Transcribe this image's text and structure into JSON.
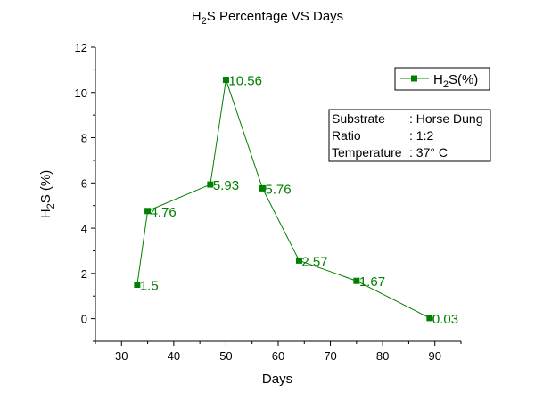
{
  "chart_data": {
    "type": "line",
    "title": "H2S Percentage VS Days",
    "title_parts": [
      "H",
      "2",
      "S Percentage VS Days"
    ],
    "xlabel": "Days",
    "ylabel_parts": [
      "H",
      "2",
      "S (%)"
    ],
    "xlim": [
      25,
      95
    ],
    "ylim": [
      -1,
      12
    ],
    "xticks": [
      30,
      40,
      50,
      60,
      70,
      80,
      90
    ],
    "yticks": [
      0,
      2,
      4,
      6,
      8,
      10,
      12
    ],
    "grid": false,
    "legend_position": "top-right",
    "series": [
      {
        "name": "H2S(%)",
        "name_parts": [
          "H",
          "2",
          "S(%)"
        ],
        "color": "#008000",
        "marker": "square",
        "points": [
          {
            "x": 33,
            "y": 1.5,
            "label": "1.5"
          },
          {
            "x": 35,
            "y": 4.76,
            "label": "4.76"
          },
          {
            "x": 47,
            "y": 5.93,
            "label": "5.93"
          },
          {
            "x": 50,
            "y": 10.56,
            "label": "10.56"
          },
          {
            "x": 57,
            "y": 5.76,
            "label": "5.76"
          },
          {
            "x": 64,
            "y": 2.57,
            "label": "2.57"
          },
          {
            "x": 75,
            "y": 1.67,
            "label": "1.67"
          },
          {
            "x": 89,
            "y": 0.03,
            "label": "0.03"
          }
        ]
      }
    ],
    "info_box": [
      {
        "key": "Substrate",
        "value": ": Horse Dung"
      },
      {
        "key": "Ratio",
        "value": ": 1:2"
      },
      {
        "key": "Temperature",
        "value": ": 37° C"
      }
    ]
  }
}
